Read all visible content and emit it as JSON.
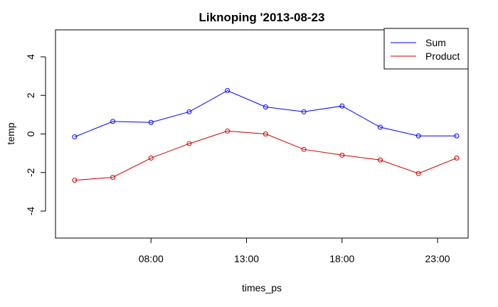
{
  "chart_data": {
    "type": "line",
    "title": "Liknoping '2013-08-23",
    "xlabel": "times_ps",
    "ylabel": "temp",
    "x": [
      4,
      6,
      8,
      10,
      12,
      14,
      16,
      18,
      20,
      22,
      24
    ],
    "xlim": [
      3,
      24.6
    ],
    "ylim": [
      -5.4,
      5.4
    ],
    "xticks": [
      8,
      13,
      18,
      23
    ],
    "xtick_labels": [
      "08:00",
      "13:00",
      "18:00",
      "23:00"
    ],
    "yticks": [
      -4,
      -2,
      0,
      2,
      4
    ],
    "ytick_labels": [
      "-4",
      "-2",
      "0",
      "2",
      "4"
    ],
    "series": [
      {
        "name": "Sum",
        "color": "#0000ff",
        "values": [
          -0.15,
          0.65,
          0.6,
          1.15,
          2.25,
          1.4,
          1.15,
          1.45,
          0.35,
          -0.1,
          -0.1
        ]
      },
      {
        "name": "Product",
        "color": "#cc0000",
        "values": [
          -2.4,
          -2.25,
          -1.25,
          -0.5,
          0.15,
          0.0,
          -0.8,
          -1.1,
          -1.35,
          -2.05,
          -1.25
        ]
      }
    ],
    "grid": false,
    "legend_position": "top-right",
    "markers": "open-circle"
  }
}
